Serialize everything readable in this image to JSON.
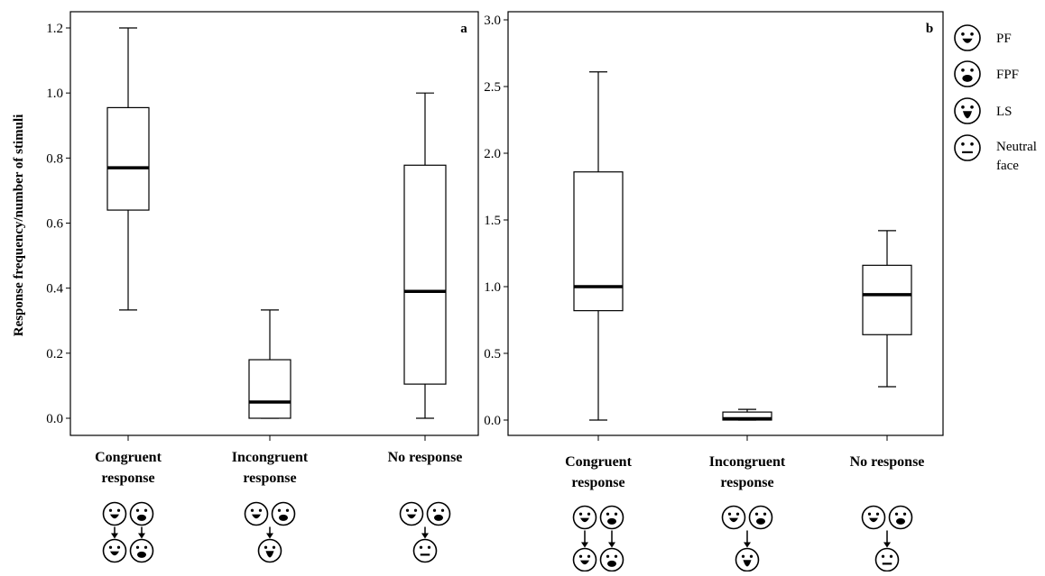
{
  "legend": [
    {
      "face": "PF",
      "label": "PF"
    },
    {
      "face": "FPF",
      "label": "FPF"
    },
    {
      "face": "LS",
      "label": "LS"
    },
    {
      "face": "NEUTRAL",
      "label_lines": [
        "Neutral",
        "face"
      ]
    }
  ],
  "chart_data": [
    {
      "type": "boxplot",
      "panel_label": "a",
      "ylabel": "Response frequency/number of stimuli",
      "ylim": [
        0,
        1.2
      ],
      "yticks": [
        "0.0",
        "0.2",
        "0.4",
        "0.6",
        "0.8",
        "1.0",
        "1.2"
      ],
      "grid": false,
      "categories": [
        {
          "label_lines": [
            "Congruent",
            "response"
          ],
          "stats": {
            "min": 0.333,
            "q1": 0.64,
            "median": 0.77,
            "q3": 0.955,
            "max": 1.2
          },
          "icons": {
            "top": [
              "PF",
              "FPF"
            ],
            "bottom": [
              "PF",
              "FPF"
            ]
          }
        },
        {
          "label_lines": [
            "Incongruent",
            "response"
          ],
          "stats": {
            "min": 0.0,
            "q1": 0.0,
            "median": 0.05,
            "q3": 0.18,
            "max": 0.333
          },
          "icons": {
            "top": [
              "PF",
              "FPF"
            ],
            "bottom": [
              "LS"
            ]
          }
        },
        {
          "label_lines": [
            "No response"
          ],
          "stats": {
            "min": 0.0,
            "q1": 0.105,
            "median": 0.39,
            "q3": 0.778,
            "max": 1.0
          },
          "icons": {
            "top": [
              "PF",
              "FPF"
            ],
            "bottom": [
              "NEUTRAL"
            ]
          }
        }
      ]
    },
    {
      "type": "boxplot",
      "panel_label": "b",
      "ylabel": "",
      "ylim": [
        0,
        3.0
      ],
      "yticks": [
        "0.0",
        "0.5",
        "1.0",
        "1.5",
        "2.0",
        "2.5",
        "3.0"
      ],
      "grid": false,
      "categories": [
        {
          "label_lines": [
            "Congruent",
            "response"
          ],
          "stats": {
            "min": 0.0,
            "q1": 0.82,
            "median": 1.0,
            "q3": 1.86,
            "max": 2.61
          },
          "icons": {
            "top": [
              "PF",
              "FPF"
            ],
            "bottom": [
              "PF",
              "FPF"
            ]
          }
        },
        {
          "label_lines": [
            "Incongruent",
            "response"
          ],
          "stats": {
            "min": 0.0,
            "q1": 0.0,
            "median": 0.01,
            "q3": 0.06,
            "max": 0.08
          },
          "icons": {
            "top": [
              "PF",
              "FPF"
            ],
            "bottom": [
              "LS"
            ]
          }
        },
        {
          "label_lines": [
            "No response"
          ],
          "stats": {
            "min": 0.25,
            "q1": 0.64,
            "median": 0.94,
            "q3": 1.16,
            "max": 1.42
          },
          "icons": {
            "top": [
              "PF",
              "FPF"
            ],
            "bottom": [
              "NEUTRAL"
            ]
          }
        }
      ]
    }
  ]
}
